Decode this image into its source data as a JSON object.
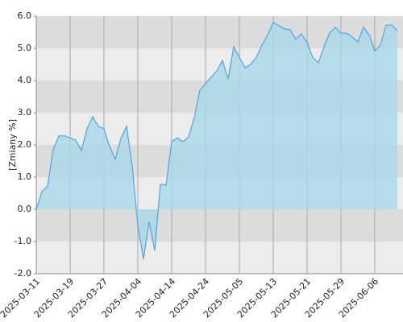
{
  "chart_data": {
    "type": "area",
    "y_label": "[Zmiany %]",
    "categories": [
      "2025-03-11",
      null,
      null,
      null,
      null,
      null,
      "2025-03-19",
      null,
      null,
      null,
      null,
      null,
      "2025-03-27",
      null,
      null,
      null,
      null,
      null,
      "2025-04-04",
      null,
      null,
      null,
      null,
      null,
      "2025-04-14",
      null,
      null,
      null,
      null,
      null,
      "2025-04-24",
      null,
      null,
      null,
      null,
      null,
      "2025-05-05",
      null,
      null,
      null,
      null,
      null,
      "2025-05-13",
      null,
      null,
      null,
      null,
      null,
      "2025-05-21",
      null,
      null,
      null,
      null,
      null,
      "2025-05-29",
      null,
      null,
      null,
      null,
      null,
      "2025-06-06",
      null,
      null,
      null,
      null
    ],
    "values": [
      0.0,
      0.55,
      0.72,
      1.85,
      2.28,
      2.28,
      2.22,
      2.15,
      1.82,
      2.5,
      2.88,
      2.58,
      2.5,
      1.95,
      1.55,
      2.2,
      2.58,
      1.35,
      -0.5,
      -1.55,
      -0.38,
      -1.28,
      0.78,
      0.75,
      2.1,
      2.22,
      2.1,
      2.25,
      2.85,
      3.7,
      3.9,
      4.1,
      4.3,
      4.62,
      4.05,
      5.05,
      4.72,
      4.4,
      4.5,
      4.72,
      5.1,
      5.4,
      5.8,
      5.7,
      5.6,
      5.58,
      5.28,
      5.45,
      5.18,
      4.72,
      4.55,
      5.05,
      5.48,
      5.65,
      5.47,
      5.47,
      5.35,
      5.2,
      5.65,
      5.42,
      4.92,
      5.1,
      5.72,
      5.72,
      5.55
    ],
    "color": "#4fa3e6",
    "fill_color": "#a9d8ea",
    "ylim": [
      -2,
      6
    ],
    "yticks": [
      {
        "value": -2,
        "label": "-2.0"
      },
      {
        "value": -1,
        "label": "-1.0"
      },
      {
        "value": 0,
        "label": "0.0"
      },
      {
        "value": 1,
        "label": "1.0"
      },
      {
        "value": 2,
        "label": "2.0"
      },
      {
        "value": 3,
        "label": "3.0"
      },
      {
        "value": 4,
        "label": "4.0"
      },
      {
        "value": 5,
        "label": "5.0"
      },
      {
        "value": 6,
        "label": "6.0"
      }
    ],
    "grid": true
  }
}
